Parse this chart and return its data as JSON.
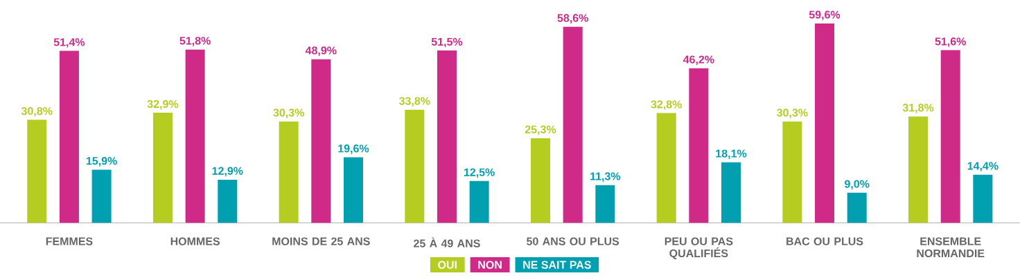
{
  "chart_data": {
    "type": "bar",
    "categories": [
      "FEMMES",
      "HOMMES",
      "MOINS DE 25 ANS",
      "25 À 49 ANS",
      "50 ANS OU PLUS",
      "PEU OU PAS QUALIFIÉS",
      "BAC OU PLUS",
      "ENSEMBLE NORMANDIE"
    ],
    "series": [
      {
        "name": "OUI",
        "color": "#b5cd21",
        "values": [
          30.8,
          32.9,
          30.3,
          33.8,
          25.3,
          32.8,
          30.3,
          31.8
        ],
        "value_labels": [
          "30,8%",
          "32,9%",
          "30,3%",
          "33,8%",
          "25,3%",
          "32,8%",
          "30,3%",
          "31,8%"
        ]
      },
      {
        "name": "NON",
        "color": "#cf2a87",
        "values": [
          51.4,
          51.8,
          48.9,
          51.5,
          58.6,
          46.2,
          59.6,
          51.6
        ],
        "value_labels": [
          "51,4%",
          "51,8%",
          "48,9%",
          "51,5%",
          "58,6%",
          "46,2%",
          "59,6%",
          "51,6%"
        ]
      },
      {
        "name": "NE SAIT PAS",
        "color": "#00a0b0",
        "values": [
          15.9,
          12.9,
          19.6,
          12.5,
          11.3,
          18.1,
          9.0,
          14.4
        ],
        "value_labels": [
          "15,9%",
          "12,9%",
          "19,6%",
          "12,5%",
          "11,3%",
          "18,1%",
          "9,0%",
          "14,4%"
        ]
      }
    ],
    "legend": "bottom"
  }
}
